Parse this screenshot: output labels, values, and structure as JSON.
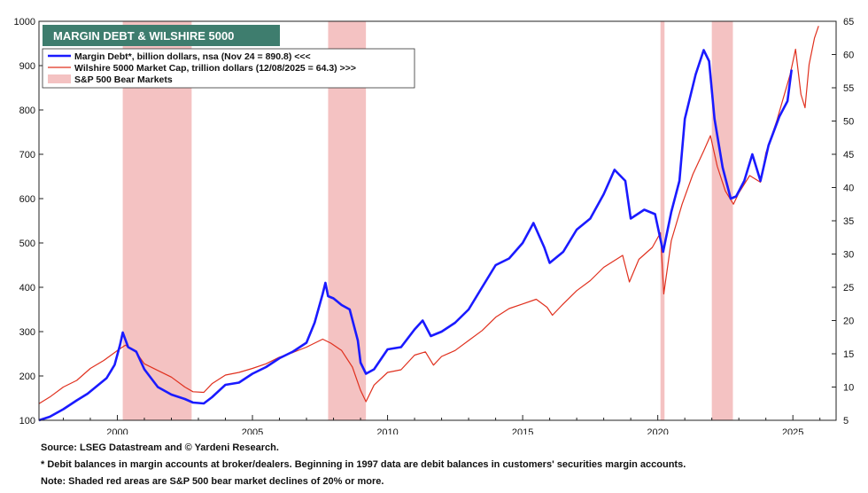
{
  "chart_data": {
    "type": "line",
    "title": "MARGIN DEBT & WILSHIRE 5000",
    "left_axis": {
      "ylim": [
        100,
        1000
      ],
      "ticks": [
        100,
        200,
        300,
        400,
        500,
        600,
        700,
        800,
        900,
        1000
      ]
    },
    "right_axis": {
      "ylim": [
        5,
        65
      ],
      "ticks": [
        5,
        10,
        15,
        20,
        25,
        30,
        35,
        40,
        45,
        50,
        55,
        60,
        65
      ]
    },
    "x_axis": {
      "xlim": [
        1997.1,
        2026.6
      ],
      "ticks": [
        2000,
        2005,
        2010,
        2015,
        2020,
        2025
      ]
    },
    "grid": false,
    "legend": {
      "placement": "top-left",
      "entries": [
        {
          "label": "Margin Debt*, billion dollars, nsa (Nov 24 = 890.8) <<<",
          "color": "#1a1aff",
          "kind": "line"
        },
        {
          "label": "Wilshire 5000 Market Cap, trillion dollars  (12/08/2025 = 64.3) >>>",
          "color": "#e0301e",
          "kind": "line"
        },
        {
          "label": "S&P 500 Bear Markets",
          "color": "#f4c2c2",
          "kind": "area"
        }
      ]
    },
    "bear_markets": [
      [
        2000.2,
        2002.75
      ],
      [
        2007.8,
        2009.2
      ],
      [
        2020.1,
        2020.25
      ],
      [
        2022.0,
        2022.78
      ]
    ],
    "series": [
      {
        "name": "Margin Debt*, billion dollars, nsa (Nov 24 = 890.8) <<<",
        "axis": "left",
        "color": "#1a1aff",
        "points": [
          [
            1997.1,
            100
          ],
          [
            1997.5,
            108
          ],
          [
            1998.0,
            125
          ],
          [
            1998.5,
            145
          ],
          [
            1998.9,
            160
          ],
          [
            1999.3,
            180
          ],
          [
            1999.6,
            195
          ],
          [
            1999.9,
            225
          ],
          [
            2000.1,
            270
          ],
          [
            2000.2,
            298
          ],
          [
            2000.4,
            265
          ],
          [
            2000.7,
            255
          ],
          [
            2001.0,
            215
          ],
          [
            2001.5,
            175
          ],
          [
            2002.0,
            158
          ],
          [
            2002.5,
            148
          ],
          [
            2002.8,
            140
          ],
          [
            2003.2,
            138
          ],
          [
            2003.5,
            152
          ],
          [
            2004.0,
            180
          ],
          [
            2004.5,
            185
          ],
          [
            2005.0,
            205
          ],
          [
            2005.5,
            220
          ],
          [
            2006.0,
            240
          ],
          [
            2006.5,
            255
          ],
          [
            2007.0,
            275
          ],
          [
            2007.3,
            320
          ],
          [
            2007.6,
            385
          ],
          [
            2007.7,
            410
          ],
          [
            2007.8,
            380
          ],
          [
            2008.0,
            375
          ],
          [
            2008.3,
            360
          ],
          [
            2008.6,
            350
          ],
          [
            2008.9,
            280
          ],
          [
            2009.0,
            230
          ],
          [
            2009.2,
            205
          ],
          [
            2009.5,
            215
          ],
          [
            2010.0,
            260
          ],
          [
            2010.5,
            265
          ],
          [
            2011.0,
            305
          ],
          [
            2011.3,
            325
          ],
          [
            2011.6,
            290
          ],
          [
            2012.0,
            300
          ],
          [
            2012.5,
            320
          ],
          [
            2013.0,
            350
          ],
          [
            2013.5,
            400
          ],
          [
            2014.0,
            450
          ],
          [
            2014.5,
            465
          ],
          [
            2015.0,
            500
          ],
          [
            2015.4,
            545
          ],
          [
            2015.8,
            490
          ],
          [
            2016.0,
            455
          ],
          [
            2016.5,
            480
          ],
          [
            2017.0,
            530
          ],
          [
            2017.5,
            555
          ],
          [
            2018.0,
            610
          ],
          [
            2018.4,
            665
          ],
          [
            2018.8,
            640
          ],
          [
            2019.0,
            555
          ],
          [
            2019.5,
            575
          ],
          [
            2019.9,
            565
          ],
          [
            2020.2,
            480
          ],
          [
            2020.5,
            570
          ],
          [
            2020.8,
            640
          ],
          [
            2021.0,
            780
          ],
          [
            2021.4,
            880
          ],
          [
            2021.7,
            935
          ],
          [
            2021.9,
            910
          ],
          [
            2022.1,
            780
          ],
          [
            2022.4,
            670
          ],
          [
            2022.7,
            600
          ],
          [
            2022.9,
            605
          ],
          [
            2023.2,
            640
          ],
          [
            2023.5,
            700
          ],
          [
            2023.8,
            640
          ],
          [
            2024.1,
            720
          ],
          [
            2024.5,
            785
          ],
          [
            2024.8,
            820
          ],
          [
            2024.95,
            890.8
          ]
        ]
      },
      {
        "name": "Wilshire 5000 Market Cap, trillion dollars  (12/08/2025 = 64.3) >>>",
        "axis": "right",
        "color": "#e0301e",
        "points": [
          [
            1997.1,
            7.5
          ],
          [
            1997.5,
            8.5
          ],
          [
            1998.0,
            10.0
          ],
          [
            1998.5,
            11.0
          ],
          [
            1999.0,
            12.8
          ],
          [
            1999.5,
            14.0
          ],
          [
            2000.0,
            15.5
          ],
          [
            2000.3,
            16.3
          ],
          [
            2000.7,
            15.2
          ],
          [
            2001.0,
            13.5
          ],
          [
            2001.5,
            12.5
          ],
          [
            2002.0,
            11.5
          ],
          [
            2002.5,
            10.0
          ],
          [
            2002.8,
            9.3
          ],
          [
            2003.2,
            9.2
          ],
          [
            2003.5,
            10.5
          ],
          [
            2004.0,
            11.8
          ],
          [
            2004.5,
            12.2
          ],
          [
            2005.0,
            12.8
          ],
          [
            2005.5,
            13.5
          ],
          [
            2006.0,
            14.5
          ],
          [
            2006.5,
            15.2
          ],
          [
            2007.0,
            16.0
          ],
          [
            2007.6,
            17.2
          ],
          [
            2007.9,
            16.6
          ],
          [
            2008.3,
            15.5
          ],
          [
            2008.7,
            13.0
          ],
          [
            2009.0,
            9.5
          ],
          [
            2009.2,
            7.8
          ],
          [
            2009.5,
            10.3
          ],
          [
            2010.0,
            12.2
          ],
          [
            2010.5,
            12.6
          ],
          [
            2011.0,
            14.8
          ],
          [
            2011.4,
            15.3
          ],
          [
            2011.7,
            13.3
          ],
          [
            2012.0,
            14.6
          ],
          [
            2012.5,
            15.5
          ],
          [
            2013.0,
            17.0
          ],
          [
            2013.5,
            18.5
          ],
          [
            2014.0,
            20.5
          ],
          [
            2014.5,
            21.8
          ],
          [
            2015.0,
            22.5
          ],
          [
            2015.5,
            23.2
          ],
          [
            2015.9,
            22.0
          ],
          [
            2016.1,
            20.8
          ],
          [
            2016.5,
            22.5
          ],
          [
            2017.0,
            24.5
          ],
          [
            2017.5,
            26.0
          ],
          [
            2018.0,
            28.0
          ],
          [
            2018.7,
            29.8
          ],
          [
            2018.95,
            25.8
          ],
          [
            2019.3,
            29.2
          ],
          [
            2019.8,
            31.0
          ],
          [
            2020.1,
            33.2
          ],
          [
            2020.22,
            24.0
          ],
          [
            2020.5,
            32.0
          ],
          [
            2020.9,
            37.5
          ],
          [
            2021.3,
            42.0
          ],
          [
            2021.7,
            45.5
          ],
          [
            2021.95,
            47.8
          ],
          [
            2022.2,
            43.2
          ],
          [
            2022.5,
            39.5
          ],
          [
            2022.8,
            37.5
          ],
          [
            2023.0,
            39.2
          ],
          [
            2023.4,
            41.8
          ],
          [
            2023.8,
            40.8
          ],
          [
            2024.0,
            45.2
          ],
          [
            2024.4,
            50.0
          ],
          [
            2024.9,
            57.0
          ],
          [
            2025.1,
            60.8
          ],
          [
            2025.3,
            54.0
          ],
          [
            2025.45,
            52.0
          ],
          [
            2025.6,
            58.5
          ],
          [
            2025.8,
            62.5
          ],
          [
            2025.95,
            64.3
          ]
        ]
      }
    ]
  },
  "footnotes": {
    "source": "Source: LSEG Datastream and © Yardeni Research.",
    "note1": "* Debit balances in margin accounts at broker/dealers. Beginning in 1997 data are debit balances in customers' securities margin accounts.",
    "note2": "Note: Shaded red areas are S&P 500 bear market declines of 20% or more."
  }
}
